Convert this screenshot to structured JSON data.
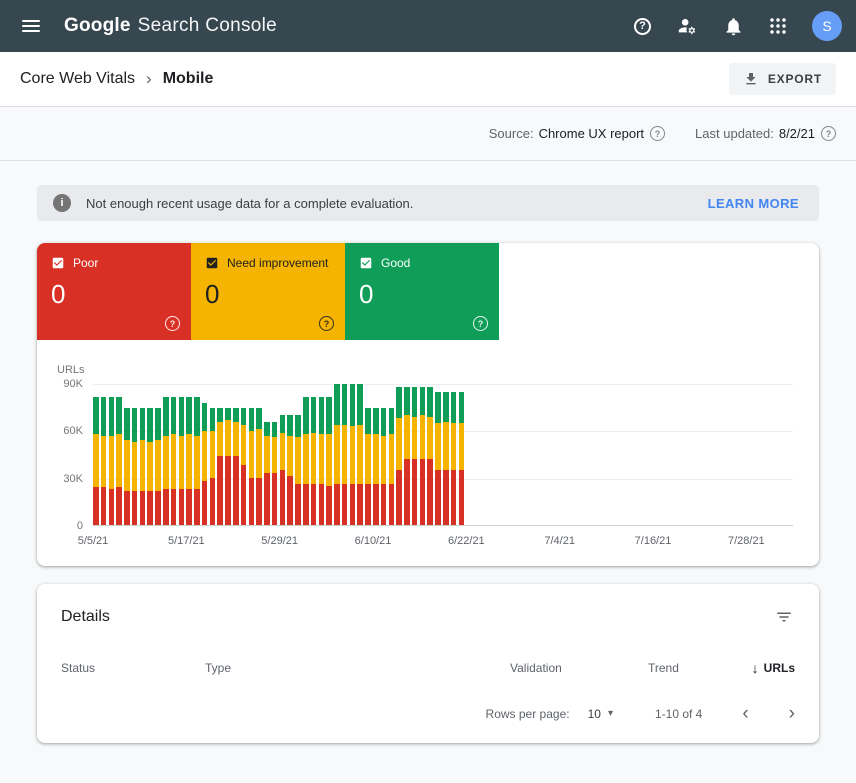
{
  "colors": {
    "header_bg": "#37474f",
    "accent_blue": "#4285f4",
    "poor": "#d93025",
    "need_improvement": "#f4b400",
    "good": "#0f9d58"
  },
  "header": {
    "product": "Google",
    "suite": "Search Console",
    "avatar_initial": "S"
  },
  "breadcrumb": {
    "section": "Core Web Vitals",
    "separator": "›",
    "page": "Mobile"
  },
  "toolbar": {
    "export_label": "EXPORT"
  },
  "meta": {
    "source_label": "Source:",
    "source_value": "Chrome UX report",
    "updated_label": "Last updated:",
    "updated_value": "8/2/21",
    "help_glyph": "?"
  },
  "banner": {
    "info_glyph": "i",
    "message": "Not enough recent usage data for a complete evaluation.",
    "action_label": "LEARN MORE"
  },
  "tiles": [
    {
      "label": "Poor",
      "value": "0",
      "help_glyph": "?",
      "color": "#d93025",
      "text_color": "#ffffff"
    },
    {
      "label": "Need improvement",
      "value": "0",
      "help_glyph": "?",
      "color": "#f4b400",
      "text_color": "#212121"
    },
    {
      "label": "Good",
      "value": "0",
      "help_glyph": "?",
      "color": "#0f9d58",
      "text_color": "#ffffff"
    }
  ],
  "chart_data": {
    "type": "bar",
    "stacked": true,
    "ylabel": "URLs",
    "ylim": [
      0,
      90000
    ],
    "y_ticks": [
      "90K",
      "60K",
      "30K",
      "0"
    ],
    "x_ticks": [
      "5/5/21",
      "5/17/21",
      "5/29/21",
      "6/10/21",
      "6/22/21",
      "7/4/21",
      "7/16/21",
      "7/28/21"
    ],
    "total_days": 90,
    "grid": true,
    "legend_position": "none",
    "x": [
      "5/5/21",
      "5/6/21",
      "5/7/21",
      "5/8/21",
      "5/9/21",
      "5/10/21",
      "5/11/21",
      "5/12/21",
      "5/13/21",
      "5/14/21",
      "5/15/21",
      "5/16/21",
      "5/17/21",
      "5/18/21",
      "5/19/21",
      "5/20/21",
      "5/21/21",
      "5/22/21",
      "5/23/21",
      "5/24/21",
      "5/25/21",
      "5/26/21",
      "5/27/21",
      "5/28/21",
      "5/29/21",
      "5/30/21",
      "5/31/21",
      "6/1/21",
      "6/2/21",
      "6/3/21",
      "6/4/21",
      "6/5/21",
      "6/6/21",
      "6/7/21",
      "6/8/21",
      "6/9/21",
      "6/10/21",
      "6/11/21",
      "6/12/21",
      "6/13/21",
      "6/14/21",
      "6/15/21",
      "6/16/21",
      "6/17/21",
      "6/18/21",
      "6/19/21",
      "6/20/21",
      "6/21/21"
    ],
    "series": [
      {
        "name": "Poor",
        "key": "poor",
        "color": "#d93025",
        "values": [
          24000,
          24000,
          23000,
          24000,
          22000,
          22000,
          22000,
          22000,
          22000,
          23000,
          23000,
          23000,
          23000,
          23000,
          28000,
          30000,
          44000,
          44000,
          44000,
          38000,
          30000,
          30000,
          33000,
          33000,
          35000,
          31000,
          26000,
          26000,
          26000,
          26000,
          25000,
          26000,
          26000,
          26000,
          26000,
          26000,
          26000,
          26000,
          26000,
          35000,
          42000,
          42000,
          42000,
          42000,
          35000,
          35000,
          35000,
          35000
        ]
      },
      {
        "name": "Need improvement",
        "key": "need-improvement",
        "color": "#f4b400",
        "values": [
          34000,
          33000,
          34000,
          34000,
          32000,
          31000,
          32000,
          31000,
          32000,
          34000,
          35000,
          34000,
          35000,
          34000,
          32000,
          30000,
          22000,
          23000,
          22000,
          26000,
          30000,
          31000,
          24000,
          23000,
          24000,
          26000,
          30000,
          32000,
          33000,
          32000,
          33000,
          38000,
          38000,
          37000,
          38000,
          32000,
          32000,
          31000,
          32000,
          33000,
          28000,
          27000,
          28000,
          27000,
          30000,
          31000,
          30000,
          30000
        ]
      },
      {
        "name": "Good",
        "key": "good",
        "color": "#0f9d58",
        "values": [
          24000,
          25000,
          25000,
          24000,
          21000,
          22000,
          21000,
          22000,
          21000,
          25000,
          24000,
          25000,
          24000,
          25000,
          18000,
          15000,
          9000,
          8000,
          9000,
          11000,
          15000,
          14000,
          9000,
          10000,
          11000,
          13000,
          14000,
          24000,
          23000,
          24000,
          24000,
          26000,
          26000,
          27000,
          26000,
          17000,
          17000,
          18000,
          17000,
          20000,
          18000,
          19000,
          18000,
          19000,
          20000,
          19000,
          20000,
          20000
        ]
      }
    ]
  },
  "details": {
    "title": "Details",
    "columns": {
      "status": "Status",
      "type": "Type",
      "validation": "Validation",
      "trend": "Trend",
      "urls": "URLs"
    },
    "sort_arrow": "↓",
    "pagination": {
      "rows_label": "Rows per page:",
      "rows_value": "10",
      "dropdown_glyph": "▾",
      "range": "1-10 of 4",
      "prev_glyph": "‹",
      "next_glyph": "›"
    }
  }
}
